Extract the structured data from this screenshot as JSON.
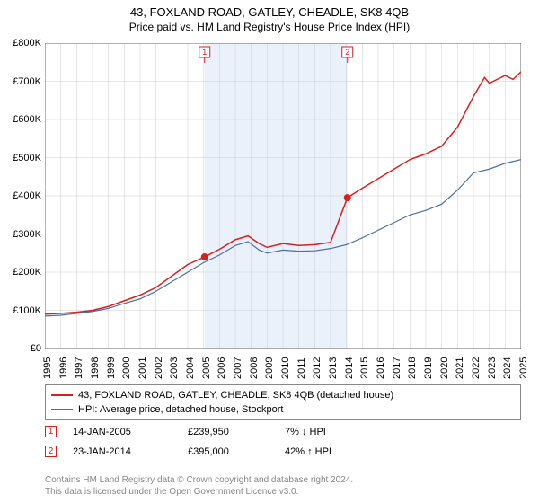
{
  "title": "43, FOXLAND ROAD, GATLEY, CHEADLE, SK8 4QB",
  "subtitle": "Price paid vs. HM Land Registry's House Price Index (HPI)",
  "chart": {
    "type": "line",
    "background_color": "#ffffff",
    "grid_color": "#cccccc",
    "axis_color": "#666666",
    "shaded_band": {
      "x_start": 2005.06,
      "x_end": 2014.06,
      "fill": "#eaf1fb"
    },
    "xlim": [
      1995,
      2025
    ],
    "ylim": [
      0,
      800000
    ],
    "ytick_step": 100000,
    "y_prefix": "£",
    "y_suffix_k": "K",
    "x_ticks": [
      1995,
      1996,
      1997,
      1998,
      1999,
      2000,
      2001,
      2002,
      2003,
      2004,
      2005,
      2006,
      2007,
      2008,
      2009,
      2010,
      2011,
      2012,
      2013,
      2014,
      2015,
      2016,
      2017,
      2018,
      2019,
      2020,
      2021,
      2022,
      2023,
      2024,
      2025
    ],
    "series": [
      {
        "name": "property",
        "color": "#d62020",
        "line_width": 1.5,
        "legend_label": "43, FOXLAND ROAD, GATLEY, CHEADLE, SK8 4QB (detached house)",
        "points": [
          [
            1995,
            90000
          ],
          [
            1996,
            92000
          ],
          [
            1997,
            95000
          ],
          [
            1998,
            100000
          ],
          [
            1999,
            110000
          ],
          [
            2000,
            125000
          ],
          [
            2001,
            140000
          ],
          [
            2002,
            160000
          ],
          [
            2003,
            190000
          ],
          [
            2004,
            220000
          ],
          [
            2005.06,
            239950
          ],
          [
            2006,
            260000
          ],
          [
            2007,
            285000
          ],
          [
            2007.8,
            295000
          ],
          [
            2008.5,
            275000
          ],
          [
            2009,
            265000
          ],
          [
            2010,
            275000
          ],
          [
            2011,
            270000
          ],
          [
            2012,
            272000
          ],
          [
            2013,
            278000
          ],
          [
            2014.06,
            395000
          ],
          [
            2015,
            420000
          ],
          [
            2016,
            445000
          ],
          [
            2017,
            470000
          ],
          [
            2018,
            495000
          ],
          [
            2019,
            510000
          ],
          [
            2020,
            530000
          ],
          [
            2021,
            580000
          ],
          [
            2022,
            660000
          ],
          [
            2022.7,
            710000
          ],
          [
            2023,
            695000
          ],
          [
            2024,
            715000
          ],
          [
            2024.5,
            705000
          ],
          [
            2025,
            725000
          ]
        ]
      },
      {
        "name": "hpi",
        "color": "#4a6fa5",
        "line_width": 1.2,
        "legend_label": "HPI: Average price, detached house, Stockport",
        "points": [
          [
            1995,
            85000
          ],
          [
            1996,
            87000
          ],
          [
            1997,
            92000
          ],
          [
            1998,
            97000
          ],
          [
            1999,
            105000
          ],
          [
            2000,
            118000
          ],
          [
            2001,
            130000
          ],
          [
            2002,
            150000
          ],
          [
            2003,
            175000
          ],
          [
            2004,
            200000
          ],
          [
            2005,
            225000
          ],
          [
            2006,
            245000
          ],
          [
            2007,
            270000
          ],
          [
            2007.8,
            280000
          ],
          [
            2008.5,
            258000
          ],
          [
            2009,
            250000
          ],
          [
            2010,
            258000
          ],
          [
            2011,
            255000
          ],
          [
            2012,
            256000
          ],
          [
            2013,
            262000
          ],
          [
            2014,
            272000
          ],
          [
            2015,
            290000
          ],
          [
            2016,
            310000
          ],
          [
            2017,
            330000
          ],
          [
            2018,
            350000
          ],
          [
            2019,
            362000
          ],
          [
            2020,
            378000
          ],
          [
            2021,
            415000
          ],
          [
            2022,
            460000
          ],
          [
            2023,
            470000
          ],
          [
            2024,
            485000
          ],
          [
            2025,
            495000
          ]
        ]
      }
    ],
    "markers": [
      {
        "n": 1,
        "x": 2005.06,
        "y": 239950,
        "color": "#d62020"
      },
      {
        "n": 2,
        "x": 2014.06,
        "y": 395000,
        "color": "#d62020"
      }
    ],
    "marker_labels": [
      {
        "n": 1,
        "x": 2005.06,
        "y_offset": -30
      },
      {
        "n": 2,
        "x": 2014.06,
        "y_offset": -30
      }
    ]
  },
  "transactions": [
    {
      "n": 1,
      "date": "14-JAN-2005",
      "price": "£239,950",
      "delta": "7% ↓ HPI",
      "box_color": "#d62020"
    },
    {
      "n": 2,
      "date": "23-JAN-2014",
      "price": "£395,000",
      "delta": "42% ↑ HPI",
      "box_color": "#d62020"
    }
  ],
  "footer_line1": "Contains HM Land Registry data © Crown copyright and database right 2024.",
  "footer_line2": "This data is licensed under the Open Government Licence v3.0."
}
